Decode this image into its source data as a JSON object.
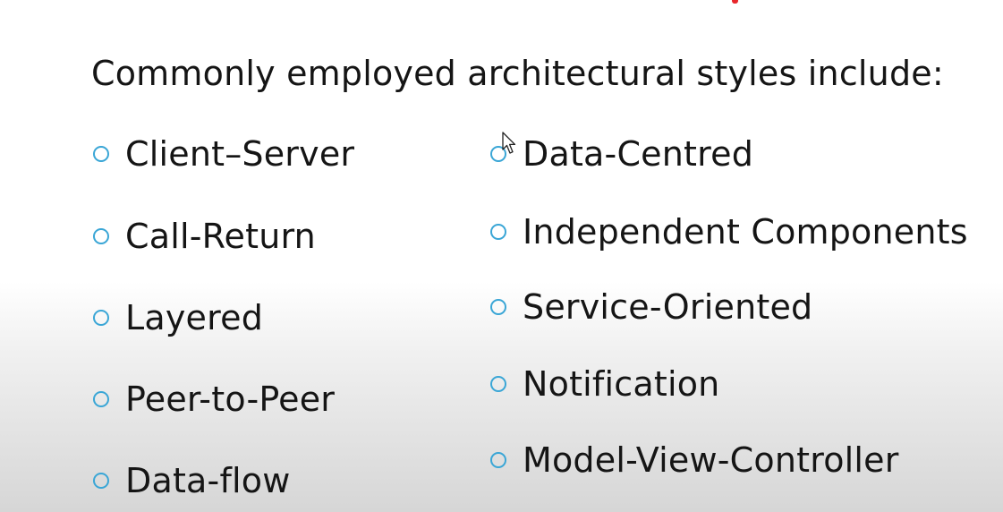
{
  "slide": {
    "heading": "Commonly employed architectural styles include:",
    "left_items": [
      {
        "label": "Client–Server"
      },
      {
        "label": "Call-Return"
      },
      {
        "label": "Layered"
      },
      {
        "label": "Peer-to-Peer"
      },
      {
        "label": "Data-flow"
      }
    ],
    "right_items": [
      {
        "label": "Data-Centred"
      },
      {
        "label": "Independent Components"
      },
      {
        "label": "Service-Oriented"
      },
      {
        "label": "Notification"
      },
      {
        "label": "Model-View-Controller"
      }
    ]
  },
  "colors": {
    "bullet": "#3aa6d6",
    "accent_red": "#e8262b",
    "text": "#151515"
  },
  "icons": {
    "bullet": "hollow-circle-bullet",
    "pointer": "mouse-pointer-icon"
  }
}
